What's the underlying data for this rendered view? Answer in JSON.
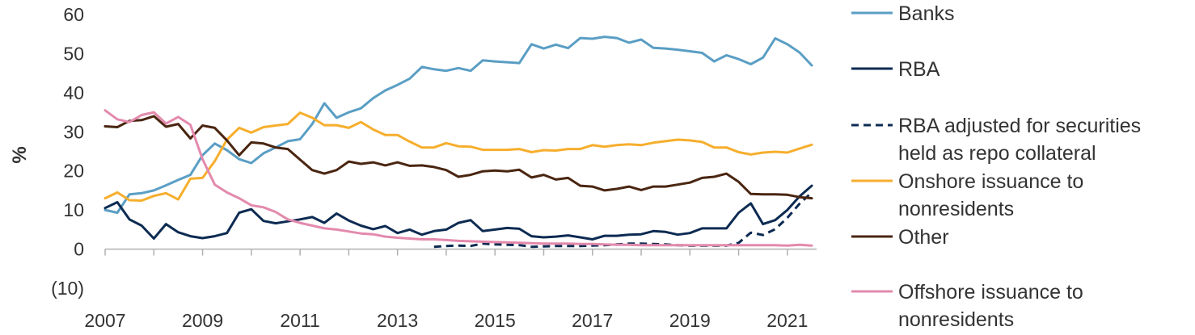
{
  "chart_data": {
    "type": "line",
    "title": "",
    "xlabel": "",
    "ylabel": "%",
    "xlim": [
      2007,
      2021.6
    ],
    "ylim": [
      -10,
      60
    ],
    "x_ticks": [
      "2007",
      "2009",
      "2011",
      "2013",
      "2015",
      "2017",
      "2019",
      "2021"
    ],
    "y_ticks": [
      "60",
      "50",
      "40",
      "30",
      "20",
      "10",
      "0",
      "(10)"
    ],
    "legend_position": "right",
    "series": [
      {
        "name": "Banks",
        "color": "#5a9ec4",
        "dash": "solid",
        "x": [
          2007.0,
          2007.25,
          2007.5,
          2007.75,
          2008.0,
          2008.25,
          2008.5,
          2008.75,
          2009.0,
          2009.25,
          2009.5,
          2009.75,
          2010.0,
          2010.25,
          2010.5,
          2010.75,
          2011.0,
          2011.25,
          2011.5,
          2011.75,
          2012.0,
          2012.25,
          2012.5,
          2012.75,
          2013.0,
          2013.25,
          2013.5,
          2013.75,
          2014.0,
          2014.25,
          2014.5,
          2014.75,
          2015.0,
          2015.25,
          2015.5,
          2015.75,
          2016.0,
          2016.25,
          2016.5,
          2016.75,
          2017.0,
          2017.25,
          2017.5,
          2017.75,
          2018.0,
          2018.25,
          2018.5,
          2018.75,
          2019.0,
          2019.25,
          2019.5,
          2019.75,
          2020.0,
          2020.25,
          2020.5,
          2020.75,
          2021.0,
          2021.25,
          2021.5
        ],
        "y": [
          10,
          9.3,
          14,
          14.3,
          15,
          16.3,
          17.7,
          19,
          24,
          27,
          25.3,
          23,
          22,
          24.5,
          26,
          27.6,
          28.1,
          32,
          37.3,
          33.6,
          35,
          36,
          38.6,
          40.6,
          42,
          43.6,
          46.6,
          46,
          45.6,
          46.3,
          45.6,
          48.3,
          48,
          47.8,
          47.6,
          52.4,
          51.3,
          52.3,
          51.4,
          54,
          53.8,
          54.3,
          54,
          52.8,
          53.6,
          51.5,
          51.3,
          51,
          50.6,
          50.2,
          48,
          49.6,
          48.6,
          47.3,
          49,
          53.9,
          52.4,
          50.3,
          47
        ]
      },
      {
        "name": "RBA",
        "color": "#0d2b52",
        "dash": "solid",
        "x": [
          2007.0,
          2007.25,
          2007.5,
          2007.75,
          2008.0,
          2008.25,
          2008.5,
          2008.75,
          2009.0,
          2009.25,
          2009.5,
          2009.75,
          2010.0,
          2010.25,
          2010.5,
          2010.75,
          2011.0,
          2011.25,
          2011.5,
          2011.75,
          2012.0,
          2012.25,
          2012.5,
          2012.75,
          2013.0,
          2013.25,
          2013.5,
          2013.75,
          2014.0,
          2014.25,
          2014.5,
          2014.75,
          2015.0,
          2015.25,
          2015.5,
          2015.75,
          2016.0,
          2016.25,
          2016.5,
          2016.75,
          2017.0,
          2017.25,
          2017.5,
          2017.75,
          2018.0,
          2018.25,
          2018.5,
          2018.75,
          2019.0,
          2019.25,
          2019.5,
          2019.75,
          2020.0,
          2020.25,
          2020.5,
          2020.75,
          2021.0,
          2021.25,
          2021.5
        ],
        "y": [
          10.5,
          12,
          7.6,
          6,
          2.7,
          6.4,
          4.3,
          3.3,
          2.8,
          3.3,
          4.1,
          9.3,
          10.2,
          7.2,
          6.6,
          7.1,
          7.6,
          8.2,
          6.7,
          9.1,
          7.3,
          6,
          5.1,
          5.9,
          4.1,
          5,
          3.7,
          4.6,
          5,
          6.7,
          7.4,
          4.6,
          5,
          5.4,
          5.2,
          3.3,
          3,
          3.2,
          3.5,
          3,
          2.5,
          3.4,
          3.4,
          3.7,
          3.8,
          4.6,
          4.4,
          3.7,
          4.1,
          5.3,
          5.3,
          5.3,
          9.3,
          11.7,
          6.4,
          7.4,
          10,
          13.5,
          16.2
        ]
      },
      {
        "name": "RBA adjusted for securities held as repo collateral",
        "color": "#0d2b52",
        "dash": "dashed",
        "x": [
          2013.75,
          2014.0,
          2014.25,
          2014.5,
          2014.75,
          2015.0,
          2015.25,
          2015.5,
          2015.75,
          2016.0,
          2016.25,
          2016.5,
          2016.75,
          2017.0,
          2017.25,
          2017.5,
          2017.75,
          2018.0,
          2018.25,
          2018.5,
          2018.75,
          2019.0,
          2019.25,
          2019.5,
          2019.75,
          2020.0,
          2020.25,
          2020.5,
          2020.75,
          2021.0,
          2021.25,
          2021.5
        ],
        "y": [
          0.6,
          0.8,
          0.9,
          0.8,
          1.4,
          1.2,
          1.1,
          1,
          0.6,
          0.7,
          0.8,
          0.8,
          0.8,
          0.9,
          1,
          1.2,
          1.4,
          1.4,
          1.3,
          1.2,
          1,
          0.9,
          0.9,
          0.9,
          0.9,
          1.6,
          4.2,
          3.6,
          5.1,
          8,
          11.6,
          14.5
        ]
      },
      {
        "name": "Onshore issuance to nonresidents",
        "color": "#f6ae2d",
        "dash": "solid",
        "x": [
          2007.0,
          2007.25,
          2007.5,
          2007.75,
          2008.0,
          2008.25,
          2008.5,
          2008.75,
          2009.0,
          2009.25,
          2009.5,
          2009.75,
          2010.0,
          2010.25,
          2010.5,
          2010.75,
          2011.0,
          2011.25,
          2011.5,
          2011.75,
          2012.0,
          2012.25,
          2012.5,
          2012.75,
          2013.0,
          2013.25,
          2013.5,
          2013.75,
          2014.0,
          2014.25,
          2014.5,
          2014.75,
          2015.0,
          2015.25,
          2015.5,
          2015.75,
          2016.0,
          2016.25,
          2016.5,
          2016.75,
          2017.0,
          2017.25,
          2017.5,
          2017.75,
          2018.0,
          2018.25,
          2018.5,
          2018.75,
          2019.0,
          2019.25,
          2019.5,
          2019.75,
          2020.0,
          2020.25,
          2020.5,
          2020.75,
          2021.0,
          2021.25,
          2021.5
        ],
        "y": [
          13,
          14.5,
          12.5,
          12.4,
          13.6,
          14.3,
          12.7,
          18,
          18.2,
          22.5,
          28,
          31,
          29.8,
          31.2,
          31.6,
          32,
          34.9,
          33.6,
          31.7,
          31.7,
          31,
          32.5,
          30.6,
          29.2,
          29.2,
          27.5,
          26,
          26,
          27.1,
          26.3,
          26.2,
          25.4,
          25.4,
          25.4,
          25.6,
          24.8,
          25.3,
          25.2,
          25.6,
          25.6,
          26.6,
          26.2,
          26.6,
          26.8,
          26.6,
          27.2,
          27.6,
          28,
          27.8,
          27.4,
          26,
          26,
          24.8,
          24.2,
          24.7,
          24.9,
          24.7,
          25.7,
          26.7
        ]
      },
      {
        "name": "Other",
        "color": "#4a2511",
        "dash": "solid",
        "x": [
          2007.0,
          2007.25,
          2007.5,
          2007.75,
          2008.0,
          2008.25,
          2008.5,
          2008.75,
          2009.0,
          2009.25,
          2009.5,
          2009.75,
          2010.0,
          2010.25,
          2010.5,
          2010.75,
          2011.0,
          2011.25,
          2011.5,
          2011.75,
          2012.0,
          2012.25,
          2012.5,
          2012.75,
          2013.0,
          2013.25,
          2013.5,
          2013.75,
          2014.0,
          2014.25,
          2014.5,
          2014.75,
          2015.0,
          2015.25,
          2015.5,
          2015.75,
          2016.0,
          2016.25,
          2016.5,
          2016.75,
          2017.0,
          2017.25,
          2017.5,
          2017.75,
          2018.0,
          2018.25,
          2018.5,
          2018.75,
          2019.0,
          2019.25,
          2019.5,
          2019.75,
          2020.0,
          2020.25,
          2020.5,
          2020.75,
          2021.0,
          2021.25,
          2021.5
        ],
        "y": [
          31.4,
          31.2,
          32.8,
          33,
          34,
          31.3,
          32,
          28.3,
          31.6,
          31,
          27.8,
          24,
          27.3,
          27,
          26,
          25.6,
          22.9,
          20.2,
          19.3,
          20.2,
          22.4,
          21.8,
          22.2,
          21.4,
          22.2,
          21.3,
          21.4,
          21,
          20.2,
          18.5,
          19,
          19.9,
          20.1,
          19.9,
          20.3,
          18.3,
          19,
          17.8,
          18.2,
          16.2,
          16,
          15,
          15.4,
          16,
          15.1,
          16,
          16,
          16.5,
          17,
          18.2,
          18.5,
          19.3,
          17.2,
          14.1,
          14,
          14,
          13.9,
          13.3,
          13
        ]
      },
      {
        "name": "Offshore issuance to nonresidents",
        "color": "#e38aad",
        "dash": "solid",
        "x": [
          2007.0,
          2007.25,
          2007.5,
          2007.75,
          2008.0,
          2008.25,
          2008.5,
          2008.75,
          2009.0,
          2009.25,
          2009.5,
          2009.75,
          2010.0,
          2010.25,
          2010.5,
          2010.75,
          2011.0,
          2011.25,
          2011.5,
          2011.75,
          2012.0,
          2012.25,
          2012.5,
          2012.75,
          2013.0,
          2013.25,
          2013.5,
          2013.75,
          2014.0,
          2014.25,
          2014.5,
          2014.75,
          2015.0,
          2015.25,
          2015.5,
          2015.75,
          2016.0,
          2016.25,
          2016.5,
          2016.75,
          2017.0,
          2017.25,
          2017.5,
          2017.75,
          2018.0,
          2018.25,
          2018.5,
          2018.75,
          2019.0,
          2019.25,
          2019.5,
          2019.75,
          2020.0,
          2020.25,
          2020.5,
          2020.75,
          2021.0,
          2021.25,
          2021.5
        ],
        "y": [
          35.5,
          33.2,
          32.5,
          34.3,
          35,
          32.1,
          33.8,
          31.8,
          23,
          16.5,
          14.5,
          13,
          11.2,
          10.7,
          9.5,
          7.6,
          6.7,
          6,
          5.3,
          5,
          4.5,
          4,
          3.8,
          3.2,
          2.9,
          2.7,
          2.5,
          2.5,
          2.3,
          2.1,
          2,
          1.9,
          1.8,
          1.7,
          1.6,
          1.5,
          1.4,
          1.4,
          1.4,
          1.3,
          1.3,
          1.2,
          1.1,
          1.1,
          1,
          1,
          1,
          1,
          1,
          1,
          1,
          1,
          1,
          1,
          1,
          1,
          0.9,
          1.1,
          0.9
        ]
      }
    ]
  }
}
